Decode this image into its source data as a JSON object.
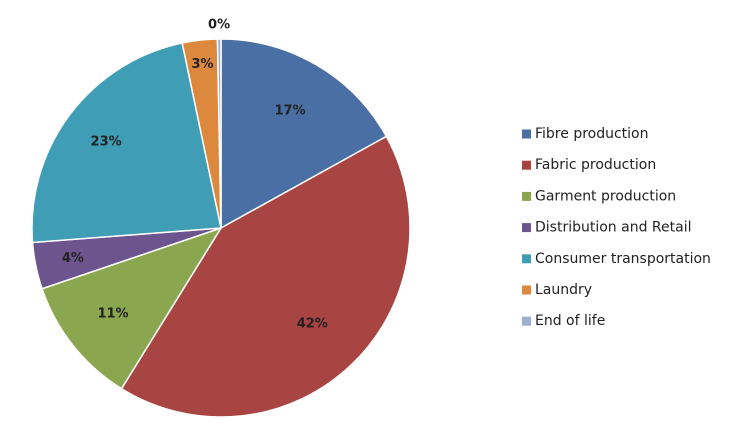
{
  "chart_data": {
    "type": "pie",
    "categories": [
      "Fibre production",
      "Fabric production",
      "Garment production",
      "Distribution and Retail",
      "Consumer transportation",
      "Laundry",
      "End of life"
    ],
    "values": [
      17,
      42,
      11,
      4,
      23,
      3,
      0.3
    ],
    "data_labels": [
      "17%",
      "42%",
      "11%",
      "4%",
      "23%",
      "3%",
      "0%"
    ],
    "colors": [
      "#4a6fa5",
      "#a84442",
      "#8aa64f",
      "#6e548f",
      "#3f9db5",
      "#dc883d",
      "#9bb0d3"
    ],
    "start_angle_deg": 0,
    "direction": "clockwise",
    "legend": {
      "position": "right"
    }
  }
}
